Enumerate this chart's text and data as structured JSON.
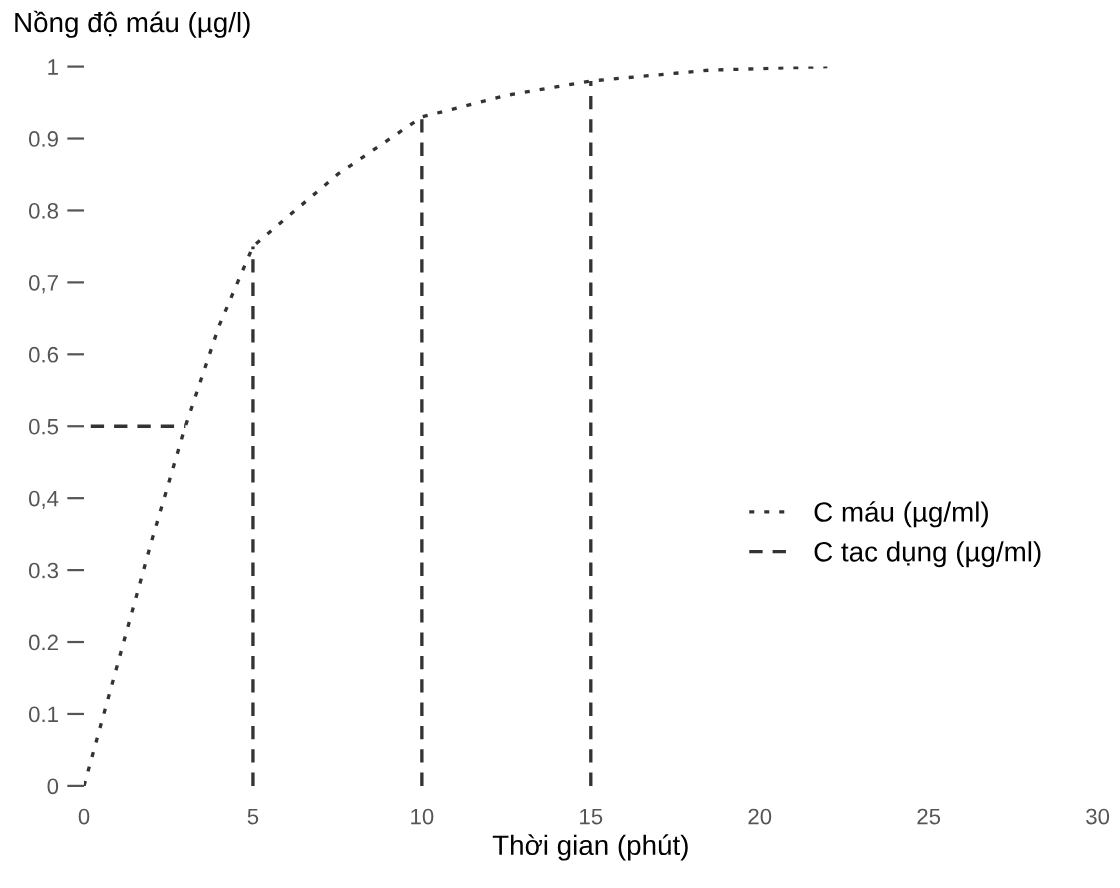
{
  "chart_data": {
    "type": "line",
    "xlabel": "Thời gian (phút)",
    "ylabel": "Nồng độ máu (µg/l)",
    "xlim": [
      0,
      30
    ],
    "xticks": [
      0,
      5,
      10,
      15,
      20,
      25,
      30
    ],
    "ylim": [
      0,
      1
    ],
    "yticks": [
      0,
      {
        "value": 0.1,
        "label": "0.1"
      },
      {
        "value": 0.2,
        "label": "0.2"
      },
      {
        "value": 0.3,
        "label": "0.3"
      },
      {
        "value": 0.4,
        "label": "0,4"
      },
      {
        "value": 0.5,
        "label": "0.5"
      },
      {
        "value": 0.6,
        "label": "0.6"
      },
      {
        "value": 0.7,
        "label": "0,7"
      },
      {
        "value": 0.8,
        "label": "0.8"
      },
      {
        "value": 0.9,
        "label": "0.9"
      },
      1
    ],
    "grid": false,
    "legend": "right",
    "marker": "none",
    "series": [
      {
        "name": "C máu (µg/ml)",
        "color": "#333333",
        "line_style": "dotted",
        "x": [
          0,
          1,
          2,
          3,
          4,
          5,
          7.5,
          10,
          12.5,
          15,
          18.5,
          22
        ],
        "values": [
          0,
          0.17,
          0.34,
          0.5,
          0.64,
          0.75,
          0.85,
          0.93,
          0.96,
          0.98,
          0.995,
          1.0
        ]
      },
      {
        "name": "C tac dụng (µg/ml)",
        "color": "#333333",
        "line_style": "dashed",
        "x": [
          0.2,
          3
        ],
        "values": [
          0.5,
          0.5
        ]
      },
      {
        "color": "#333333",
        "line_style": "dashed",
        "x": [
          5,
          5
        ],
        "values": [
          0,
          0.75
        ]
      },
      {
        "color": "#333333",
        "line_style": "dashed",
        "x": [
          10,
          10
        ],
        "values": [
          0,
          0.93
        ]
      },
      {
        "color": "#333333",
        "line_style": "dashed",
        "x": [
          15,
          15
        ],
        "values": [
          0,
          0.98
        ]
      }
    ]
  }
}
